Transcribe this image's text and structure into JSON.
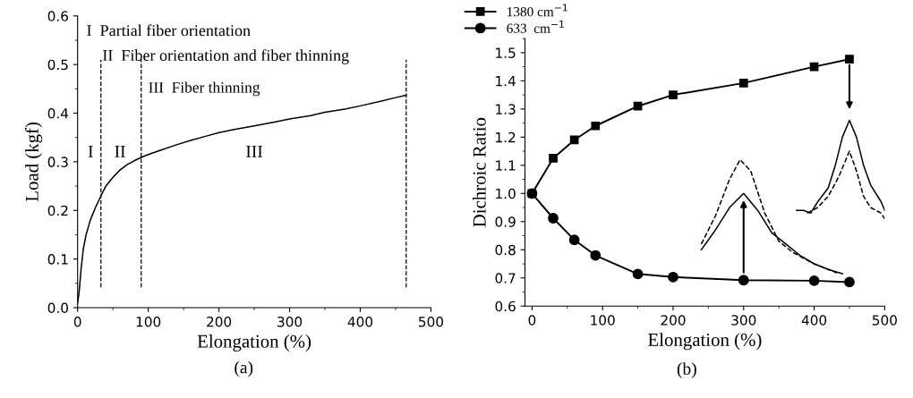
{
  "chart_data": [
    {
      "type": "line",
      "xlabel": "Elongation (%)",
      "ylabel": "Load (kgf)",
      "xlim": [
        0,
        500
      ],
      "ylim": [
        0,
        0.6
      ],
      "xticks": [
        0,
        100,
        200,
        300,
        400,
        500
      ],
      "yticks": [
        {
          "value": 0,
          "label": "0.0"
        },
        {
          "value": 0.1,
          "label": "0.1"
        },
        {
          "value": 0.2,
          "label": "0.2"
        },
        {
          "value": 0.3,
          "label": "0.3"
        },
        {
          "value": 0.4,
          "label": "0.4"
        },
        {
          "value": 0.5,
          "label": "0.5"
        },
        {
          "value": 0.6,
          "label": "0.6"
        }
      ],
      "series": [
        {
          "color": "#000000",
          "x": [
            0,
            2,
            5,
            8,
            12,
            18,
            25,
            33,
            40,
            50,
            60,
            70,
            80,
            90,
            100,
            120,
            140,
            160,
            180,
            200,
            220,
            250,
            280,
            300,
            330,
            350,
            380,
            400,
            430,
            450,
            465
          ],
          "values": [
            0.01,
            0.03,
            0.08,
            0.12,
            0.15,
            0.18,
            0.205,
            0.23,
            0.25,
            0.268,
            0.283,
            0.294,
            0.302,
            0.309,
            0.315,
            0.325,
            0.335,
            0.344,
            0.352,
            0.36,
            0.366,
            0.374,
            0.382,
            0.388,
            0.395,
            0.402,
            0.409,
            0.415,
            0.425,
            0.432,
            0.437
          ]
        }
      ],
      "ref_lines": [
        {
          "axis": "x",
          "value": 33,
          "line_style": "dashed",
          "color": "#000000"
        },
        {
          "axis": "x",
          "value": 90,
          "line_style": "dashed",
          "color": "#000000"
        },
        {
          "axis": "x",
          "value": 465,
          "line_style": "dashed",
          "color": "#000000"
        }
      ],
      "annotations": [
        "I  Partial fiber orientation",
        "II  Fiber orientation and fiber thinning",
        "III  Fiber thinning",
        "I",
        "II",
        "III",
        "(a)"
      ],
      "marker": "none",
      "line_style": "solid",
      "grid": false,
      "legend": false
    },
    {
      "type": "line",
      "xlabel": "Elongation (%)",
      "ylabel": "Dichroic Ratio",
      "xlim": [
        -10,
        500
      ],
      "ylim": [
        0.6,
        1.55
      ],
      "xticks": [
        0,
        100,
        200,
        300,
        400,
        500
      ],
      "yticks": [
        {
          "value": 0.6,
          "label": "0.6"
        },
        {
          "value": 0.7,
          "label": "0.7"
        },
        {
          "value": 0.8,
          "label": "0.8"
        },
        {
          "value": 0.9,
          "label": "0.9"
        },
        {
          "value": 1.0,
          "label": "1.0"
        },
        {
          "value": 1.1,
          "label": "1.1"
        },
        {
          "value": 1.2,
          "label": "1.2"
        },
        {
          "value": 1.3,
          "label": "1.3"
        },
        {
          "value": 1.4,
          "label": "1.4"
        },
        {
          "value": 1.5,
          "label": "1.5"
        }
      ],
      "x": [
        0,
        30,
        60,
        90,
        150,
        200,
        300,
        400,
        450
      ],
      "series": [
        {
          "name": "1380 cm$^{−1}$",
          "color": "#000000",
          "marker": "square",
          "values": [
            1.0,
            1.125,
            1.19,
            1.24,
            1.31,
            1.35,
            1.392,
            1.45,
            1.477
          ]
        },
        {
          "name": "633  cm$^{−1}$",
          "color": "#000000",
          "marker": "circle",
          "values": [
            1.0,
            0.912,
            0.835,
            0.78,
            0.714,
            0.703,
            0.692,
            0.69,
            0.685
          ]
        },
        {
          "color": "#000000",
          "marker": "none",
          "line_style": "solid",
          "x": [
            240,
            260,
            280,
            300,
            320,
            340,
            360,
            380,
            400,
            420,
            440
          ],
          "values": [
            0.8,
            0.87,
            0.95,
            1.0,
            0.94,
            0.86,
            0.82,
            0.78,
            0.75,
            0.73,
            0.715
          ]
        },
        {
          "color": "#000000",
          "marker": "none",
          "line_style": "dashed",
          "x": [
            240,
            260,
            280,
            295,
            310,
            330,
            350,
            370,
            400,
            420,
            435
          ],
          "values": [
            0.82,
            0.92,
            1.05,
            1.12,
            1.08,
            0.93,
            0.83,
            0.79,
            0.75,
            0.73,
            0.715
          ]
        },
        {
          "color": "#000000",
          "marker": "none",
          "line_style": "solid",
          "x": [
            375,
            385,
            395,
            405,
            420,
            430,
            440,
            450,
            460,
            470,
            480,
            495,
            500
          ],
          "values": [
            0.94,
            0.94,
            0.93,
            0.97,
            1.02,
            1.1,
            1.2,
            1.26,
            1.2,
            1.1,
            1.03,
            0.97,
            0.94
          ]
        },
        {
          "color": "#000000",
          "marker": "none",
          "line_style": "dashed",
          "x": [
            390,
            405,
            420,
            435,
            450,
            460,
            470,
            480,
            495,
            500
          ],
          "values": [
            0.93,
            0.95,
            0.99,
            1.06,
            1.15,
            1.08,
            0.99,
            0.95,
            0.93,
            0.91
          ]
        }
      ],
      "annotations": [
        "(b)"
      ],
      "line_style": "solid",
      "grid": false,
      "legend": "top left"
    }
  ]
}
